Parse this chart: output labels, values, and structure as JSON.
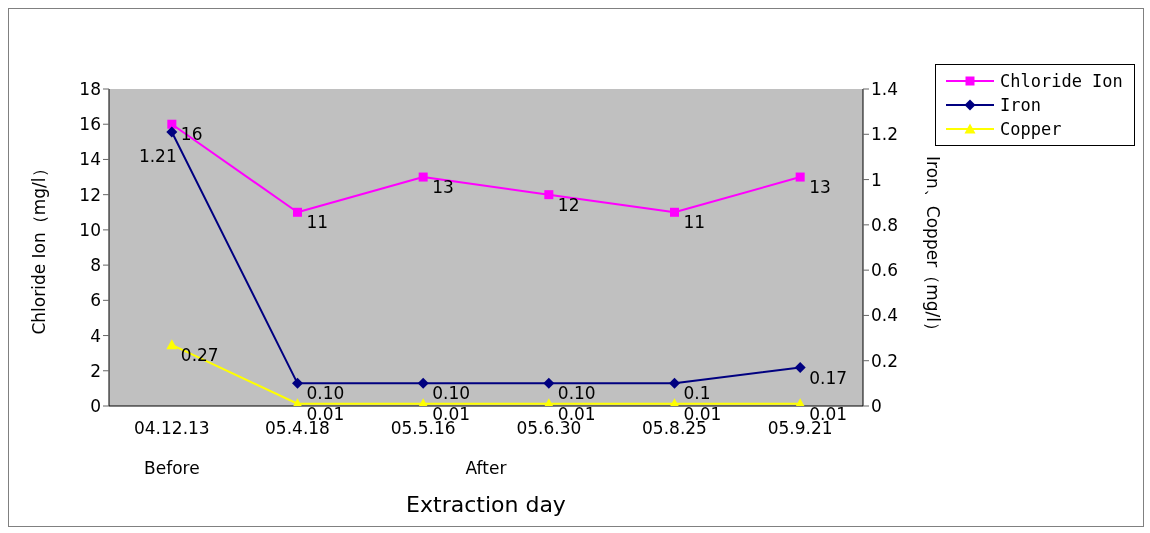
{
  "chart_data": {
    "type": "line",
    "xlabel": "Extraction day",
    "ylabel": "Chloride Ion（mg/l）",
    "y2label": "Iron、Copper（mg/l）",
    "categories": [
      "04.12.13",
      "05.4.18",
      "05.5.16",
      "05.6.30",
      "05.8.25",
      "05.9.21"
    ],
    "series": [
      {
        "name": "Chloride Ion",
        "color": "#ff00ff",
        "marker": "square",
        "values": [
          16,
          11,
          13,
          12,
          11,
          13
        ],
        "value_labels": [
          "16",
          "11",
          "13",
          "12",
          "11",
          "13"
        ]
      },
      {
        "name": "Iron",
        "color": "#000080",
        "marker": "diamond",
        "axis": "y2",
        "values": [
          1.21,
          0.1,
          0.1,
          0.1,
          0.1,
          0.17
        ],
        "value_labels": [
          "1.21",
          "0.10",
          "0.10",
          "0.10",
          "0.1",
          "0.17"
        ]
      },
      {
        "name": "Copper",
        "color": "#ffff00",
        "marker": "triangle",
        "axis": "y2",
        "values": [
          0.27,
          0.01,
          0.01,
          0.01,
          0.01,
          0.01
        ],
        "value_labels": [
          "0.27",
          "0.01",
          "0.01",
          "0.01",
          "0.01",
          "0.01"
        ]
      }
    ],
    "ylim": [
      0,
      18
    ],
    "yticks": [
      0,
      2,
      4,
      6,
      8,
      10,
      12,
      14,
      16,
      18
    ],
    "y2lim": [
      0,
      1.4
    ],
    "y2ticks": [
      0,
      {
        "value": 0.2,
        "label": "0.2"
      },
      {
        "value": 0.4,
        "label": "0.4"
      },
      {
        "value": 0.6,
        "label": "0.6"
      },
      {
        "value": 0.8,
        "label": "0.8"
      },
      1,
      {
        "value": 1.2,
        "label": "1.2"
      },
      {
        "value": 1.4,
        "label": "1.4"
      }
    ],
    "legend": "top right",
    "annotations": [
      "Before",
      "After"
    ]
  }
}
